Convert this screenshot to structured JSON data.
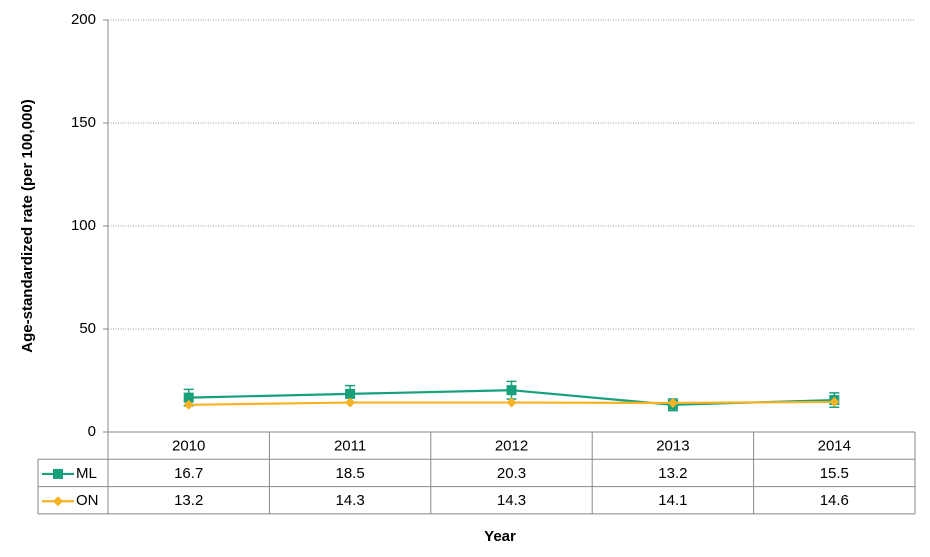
{
  "chart_data": {
    "type": "line",
    "x_label": "Year",
    "y_label": "Age-standardized rate (per 100,000)",
    "categories": [
      "2010",
      "2011",
      "2012",
      "2013",
      "2014"
    ],
    "series": [
      {
        "name": "ML",
        "color": "#17a07c",
        "marker": "square",
        "values": [
          16.7,
          18.5,
          20.3,
          13.2,
          15.5
        ],
        "errors": [
          4.0,
          4.0,
          4.3,
          2.8,
          3.5
        ]
      },
      {
        "name": "ON",
        "color": "#f5b325",
        "marker": "diamond",
        "values": [
          13.2,
          14.3,
          14.3,
          14.1,
          14.6
        ]
      }
    ],
    "ylim": [
      0,
      200
    ],
    "yticks": [
      0,
      50,
      100,
      150,
      200
    ],
    "grid": true
  }
}
